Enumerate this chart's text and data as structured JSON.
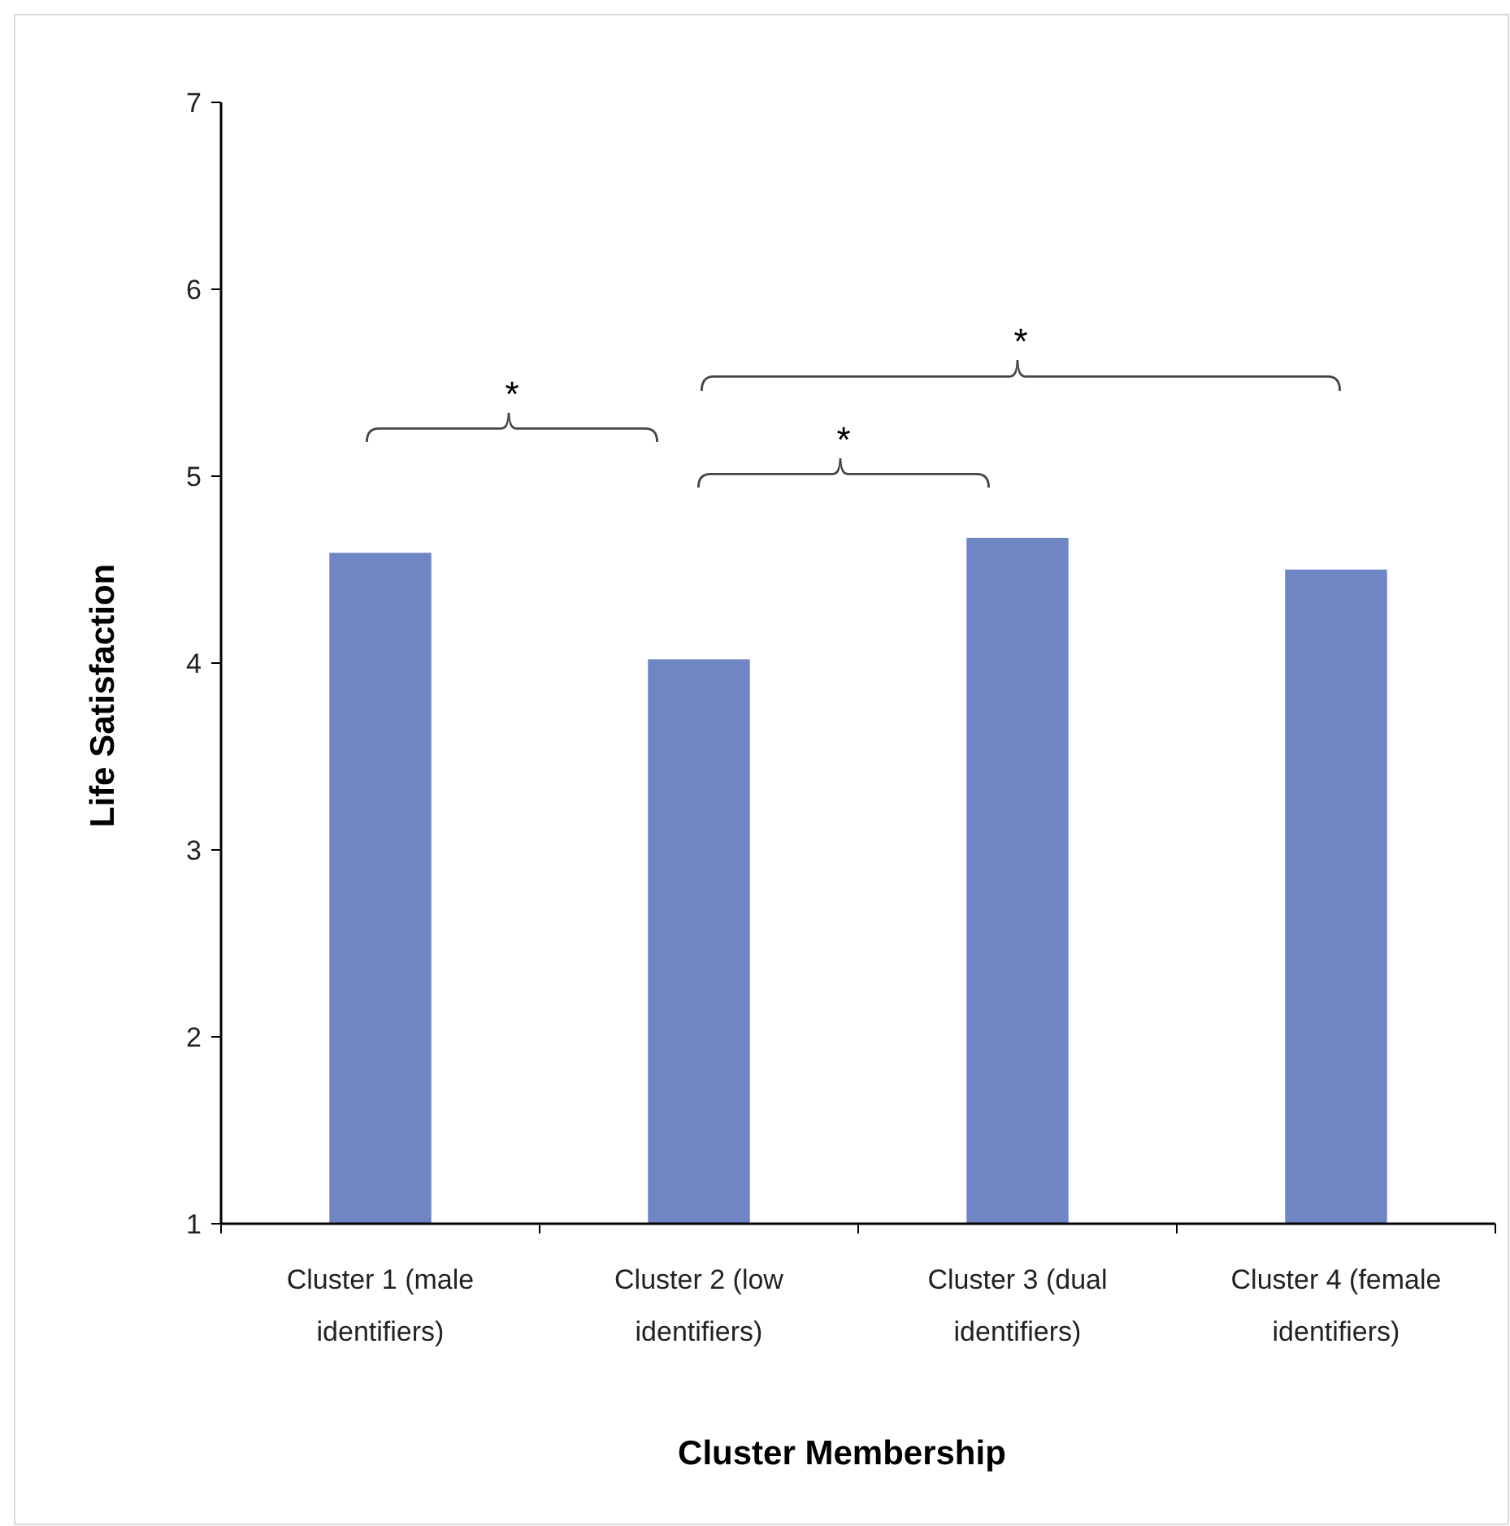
{
  "chart_data": {
    "type": "bar",
    "xlabel": "Cluster Membership",
    "ylabel": "Life Satisfaction",
    "categories": [
      "Cluster 1 (male identifiers)",
      "Cluster 2 (low identifiers)",
      "Cluster 3 (dual identifiers)",
      "Cluster 4 (female identifiers)"
    ],
    "values": [
      4.59,
      4.02,
      4.67,
      4.5
    ],
    "color": "#7086c4",
    "ylim": [
      1,
      7
    ],
    "yticks": [
      1,
      2,
      3,
      4,
      5,
      6,
      7
    ],
    "grid": false,
    "annotations": [
      "*",
      "*",
      "*"
    ]
  }
}
